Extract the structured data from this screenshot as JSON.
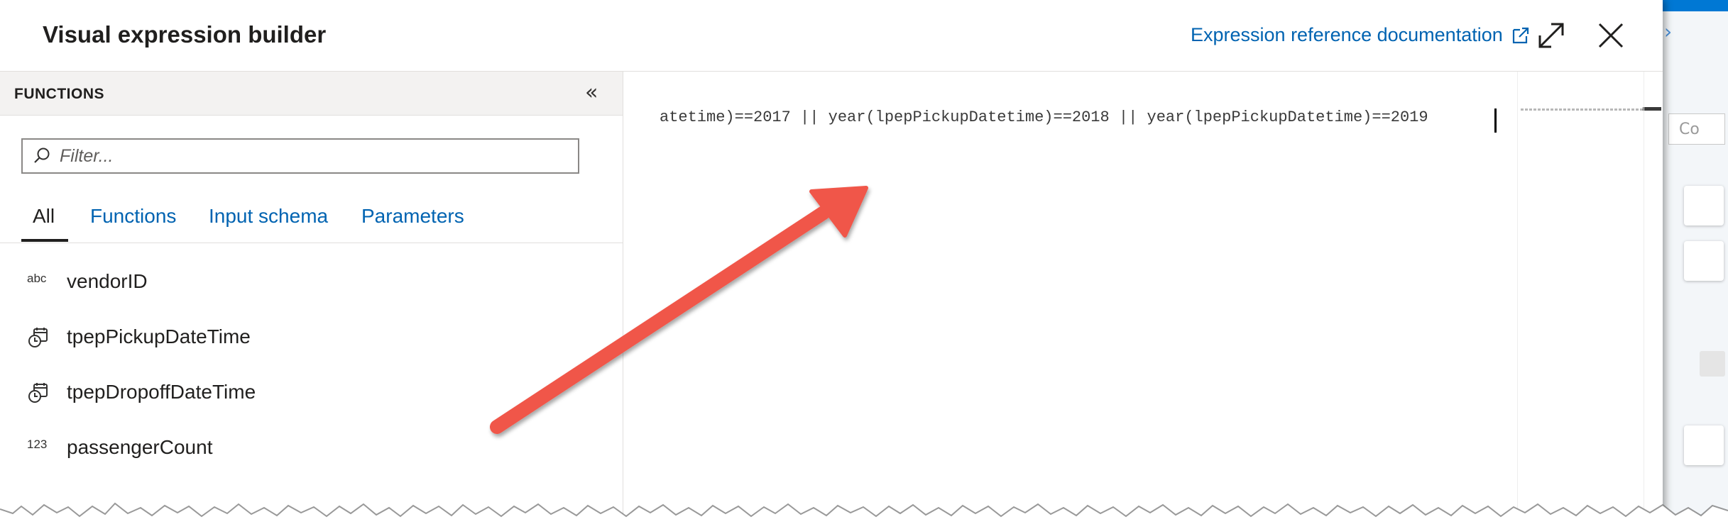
{
  "header": {
    "title": "Visual expression builder",
    "doc_link_label": "Expression reference documentation"
  },
  "functions_panel": {
    "heading": "FUNCTIONS",
    "filter_placeholder": "Filter...",
    "tabs": [
      {
        "label": "All",
        "active": true
      },
      {
        "label": "Functions",
        "active": false
      },
      {
        "label": "Input schema",
        "active": false
      },
      {
        "label": "Parameters",
        "active": false
      }
    ],
    "items": [
      {
        "icon": "abc",
        "icon_name": "string-type-icon",
        "label": "vendorID"
      },
      {
        "icon": "",
        "icon_name": "datetime-type-icon",
        "label": "tpepPickupDateTime"
      },
      {
        "icon": "",
        "icon_name": "datetime-type-icon",
        "label": "tpepDropoffDateTime"
      },
      {
        "icon": "123",
        "icon_name": "number-type-icon",
        "label": "passengerCount"
      }
    ]
  },
  "editor": {
    "expression": "atetime)==2017 || year(lpepPickupDatetime)==2018 || year(lpepPickupDatetime)==2019"
  },
  "background_page": {
    "search_text": "Co"
  },
  "colors": {
    "link": "#0063b1",
    "arrow": "#f0564a",
    "accent": "#0078d4"
  }
}
